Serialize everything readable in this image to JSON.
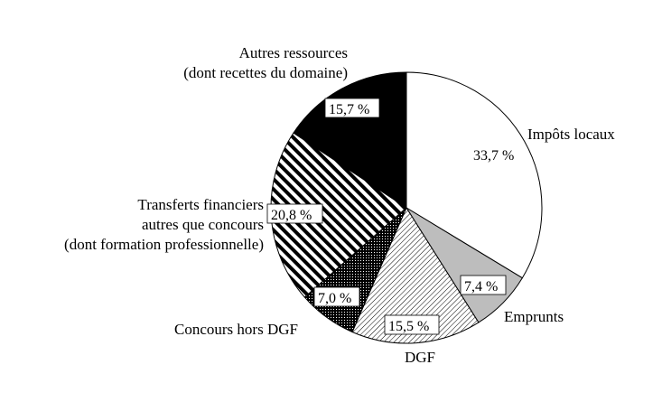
{
  "chart_data": {
    "type": "pie",
    "title": "",
    "start_angle_deg": 0,
    "direction": "clockwise",
    "slices": [
      {
        "label": "Impôts locaux",
        "pct_label": "33,7 %",
        "value": 33.7,
        "pattern": "white"
      },
      {
        "label": "Emprunts",
        "pct_label": "7,4 %",
        "value": 7.4,
        "pattern": "light-gray"
      },
      {
        "label": "DGF",
        "pct_label": "15,5 %",
        "value": 15.5,
        "pattern": "fine-diagonal-hatch"
      },
      {
        "label": "Concours hors DGF",
        "pct_label": "7,0 %",
        "value": 7.0,
        "pattern": "dense-dots"
      },
      {
        "label_lines": [
          "Transferts financiers",
          "autres que concours",
          "(dont formation professionnelle)"
        ],
        "pct_label": "20,8 %",
        "value": 20.8,
        "pattern": "wide-diagonal-stripes"
      },
      {
        "label_lines": [
          "Autres ressources",
          "(dont recettes du domaine)"
        ],
        "pct_label": "15,7 %",
        "value": 15.7,
        "pattern": "black"
      }
    ]
  }
}
